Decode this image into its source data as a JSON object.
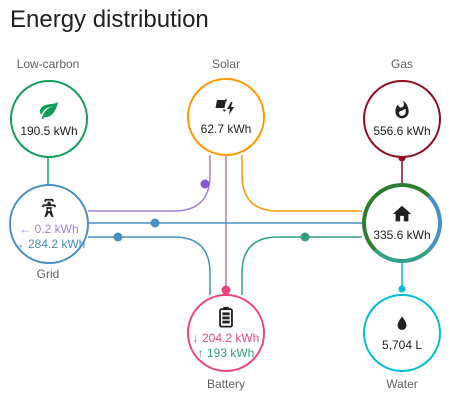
{
  "card": {
    "title": "Energy distribution"
  },
  "nodes": {
    "low_carbon": {
      "label": "Low-carbon",
      "value": "190.5 kWh",
      "icon": "leaf-icon",
      "color": "#0f9d58"
    },
    "solar": {
      "label": "Solar",
      "value": "62.7 kWh",
      "icon": "solar-power-icon",
      "color": "#ff9800"
    },
    "gas": {
      "label": "Gas",
      "value": "556.6 kWh",
      "icon": "fire-icon",
      "color": "#8e0c1e"
    },
    "grid": {
      "label": "Grid",
      "import": "← 0.2 kWh",
      "export": "→ 284.2 kWh",
      "icon": "transmission-tower-icon",
      "color": "#488fc2",
      "import_color": "#a280db",
      "export_color": "#488fc2"
    },
    "home": {
      "value": "335.6 kWh",
      "icon": "home-icon",
      "color": "#2e7d32"
    },
    "battery": {
      "label": "Battery",
      "out": "↓ 204.2 kWh",
      "in": "↑ 193 kWh",
      "icon": "battery-icon",
      "color": "#e8477d",
      "out_color": "#e8477d",
      "in_color": "#33a087"
    },
    "water": {
      "label": "Water",
      "value": "5,704 L",
      "icon": "water-drop-icon",
      "color": "#00bcd4"
    }
  },
  "flow_colors": {
    "solar_to_grid": "#a280db",
    "solar_to_home": "#ff9800",
    "solar_to_battery": "#a280db",
    "grid_to_home": "#488fc2",
    "grid_to_battery": "#488fc2",
    "battery_to_home": "#33a087",
    "low_carbon": "#0f9d58",
    "gas": "#8e0c1e",
    "water": "#00bcd4"
  }
}
